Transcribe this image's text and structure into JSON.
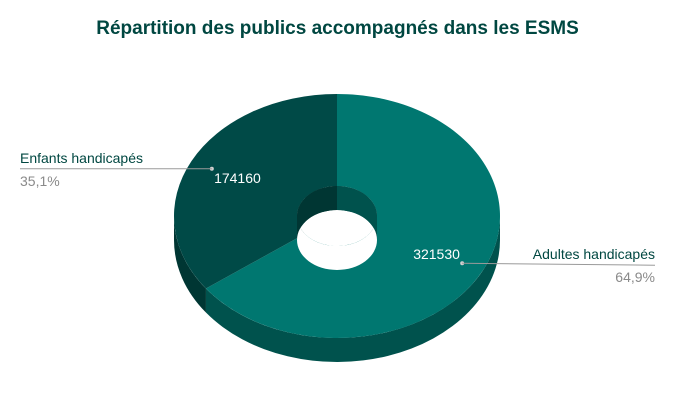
{
  "chart_data": {
    "type": "pie",
    "variant": "3d-donut",
    "title": "Répartition des publics accompagnés dans les ESMS",
    "slices": [
      {
        "label": "Enfants handicapés",
        "value": 174160,
        "value_label": "174160",
        "percent_label": "35,1%",
        "color": "#004a47",
        "side_color": "#003633"
      },
      {
        "label": "Adultes handicapés",
        "value": 321530,
        "value_label": "321530",
        "percent_label": "64,9%",
        "color": "#007770",
        "side_color": "#00524d"
      }
    ]
  },
  "colors": {
    "title": "#004741",
    "leader_line": "#9a9a9a",
    "percent_text": "#8a8a8a"
  }
}
